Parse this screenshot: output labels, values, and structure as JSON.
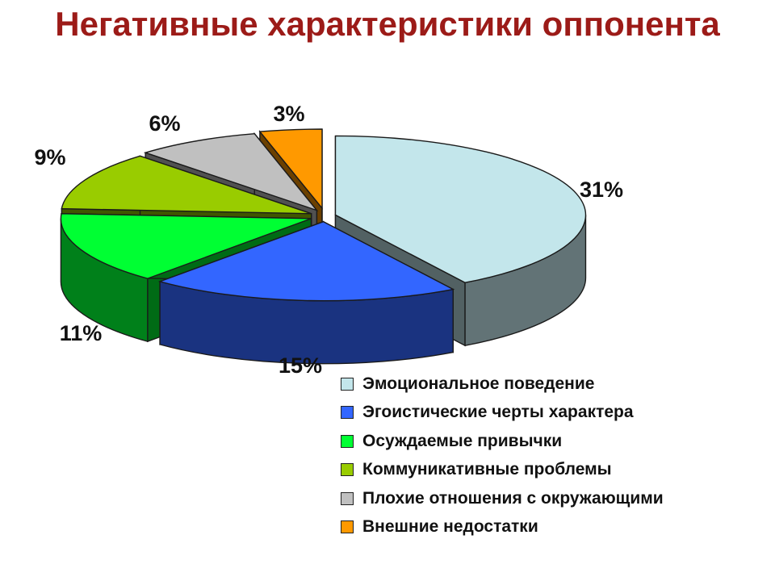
{
  "title": "Негативные характеристики оппонента",
  "chart_data": {
    "type": "pie",
    "variant": "3d-exploded",
    "title": "Негативные характеристики оппонента",
    "legend_position": "bottom-right",
    "slices": [
      {
        "label": "Эмоциональное поведение",
        "value": 31,
        "value_label": "31%",
        "color": "#c3e6eb"
      },
      {
        "label": "Эгоистические черты характера",
        "value": 15,
        "value_label": "15%",
        "color": "#3366ff"
      },
      {
        "label": "Осуждаемые привычки",
        "value": 11,
        "value_label": "11%",
        "color": "#00ff33"
      },
      {
        "label": "Коммуникативные проблемы",
        "value": 9,
        "value_label": "9%",
        "color": "#99cc00"
      },
      {
        "label": "Плохие отношения с окружающими",
        "value": 6,
        "value_label": "6%",
        "color": "#c0c0c0"
      },
      {
        "label": "Внешние недостатки",
        "value": 3,
        "value_label": "3%",
        "color": "#ff9900"
      }
    ]
  }
}
